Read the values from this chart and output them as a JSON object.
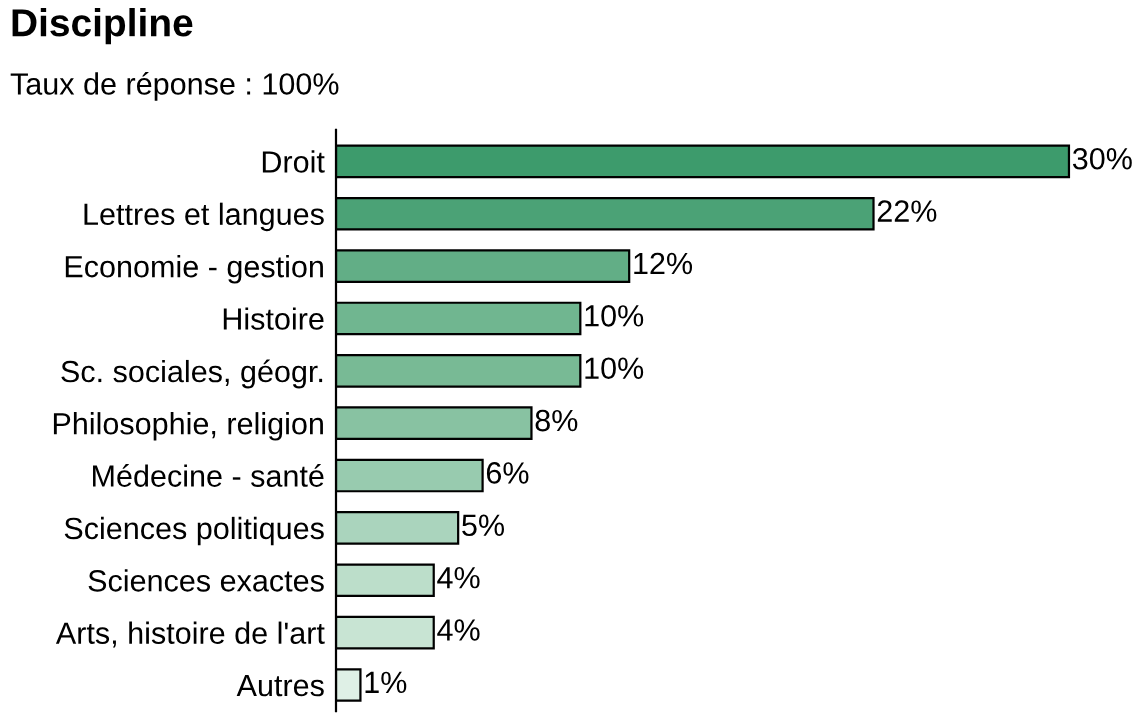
{
  "chart_data": {
    "type": "bar",
    "orientation": "horizontal",
    "title": "Discipline",
    "subtitle": "Taux de réponse : 100%",
    "categories": [
      "Droit",
      "Lettres et langues",
      "Economie - gestion",
      "Histoire",
      "Sc. sociales, géogr.",
      "Philosophie, religion",
      "Médecine - santé",
      "Sciences politiques",
      "Sciences exactes",
      "Arts, histoire de l'art",
      "Autres"
    ],
    "values": [
      30,
      22,
      12,
      10,
      10,
      8,
      6,
      5,
      4,
      4,
      1
    ],
    "value_labels": [
      "30%",
      "22%",
      "12%",
      "10%",
      "10%",
      "8%",
      "6%",
      "5%",
      "4%",
      "4%",
      "1%"
    ],
    "colors": [
      "#3d9b6c",
      "#4ba276",
      "#62ae86",
      "#70b690",
      "#78ba95",
      "#88c2a2",
      "#98cbaf",
      "#aad4bd",
      "#bcdeca",
      "#c8e4d3",
      "#dff0e6"
    ],
    "grid": false
  }
}
